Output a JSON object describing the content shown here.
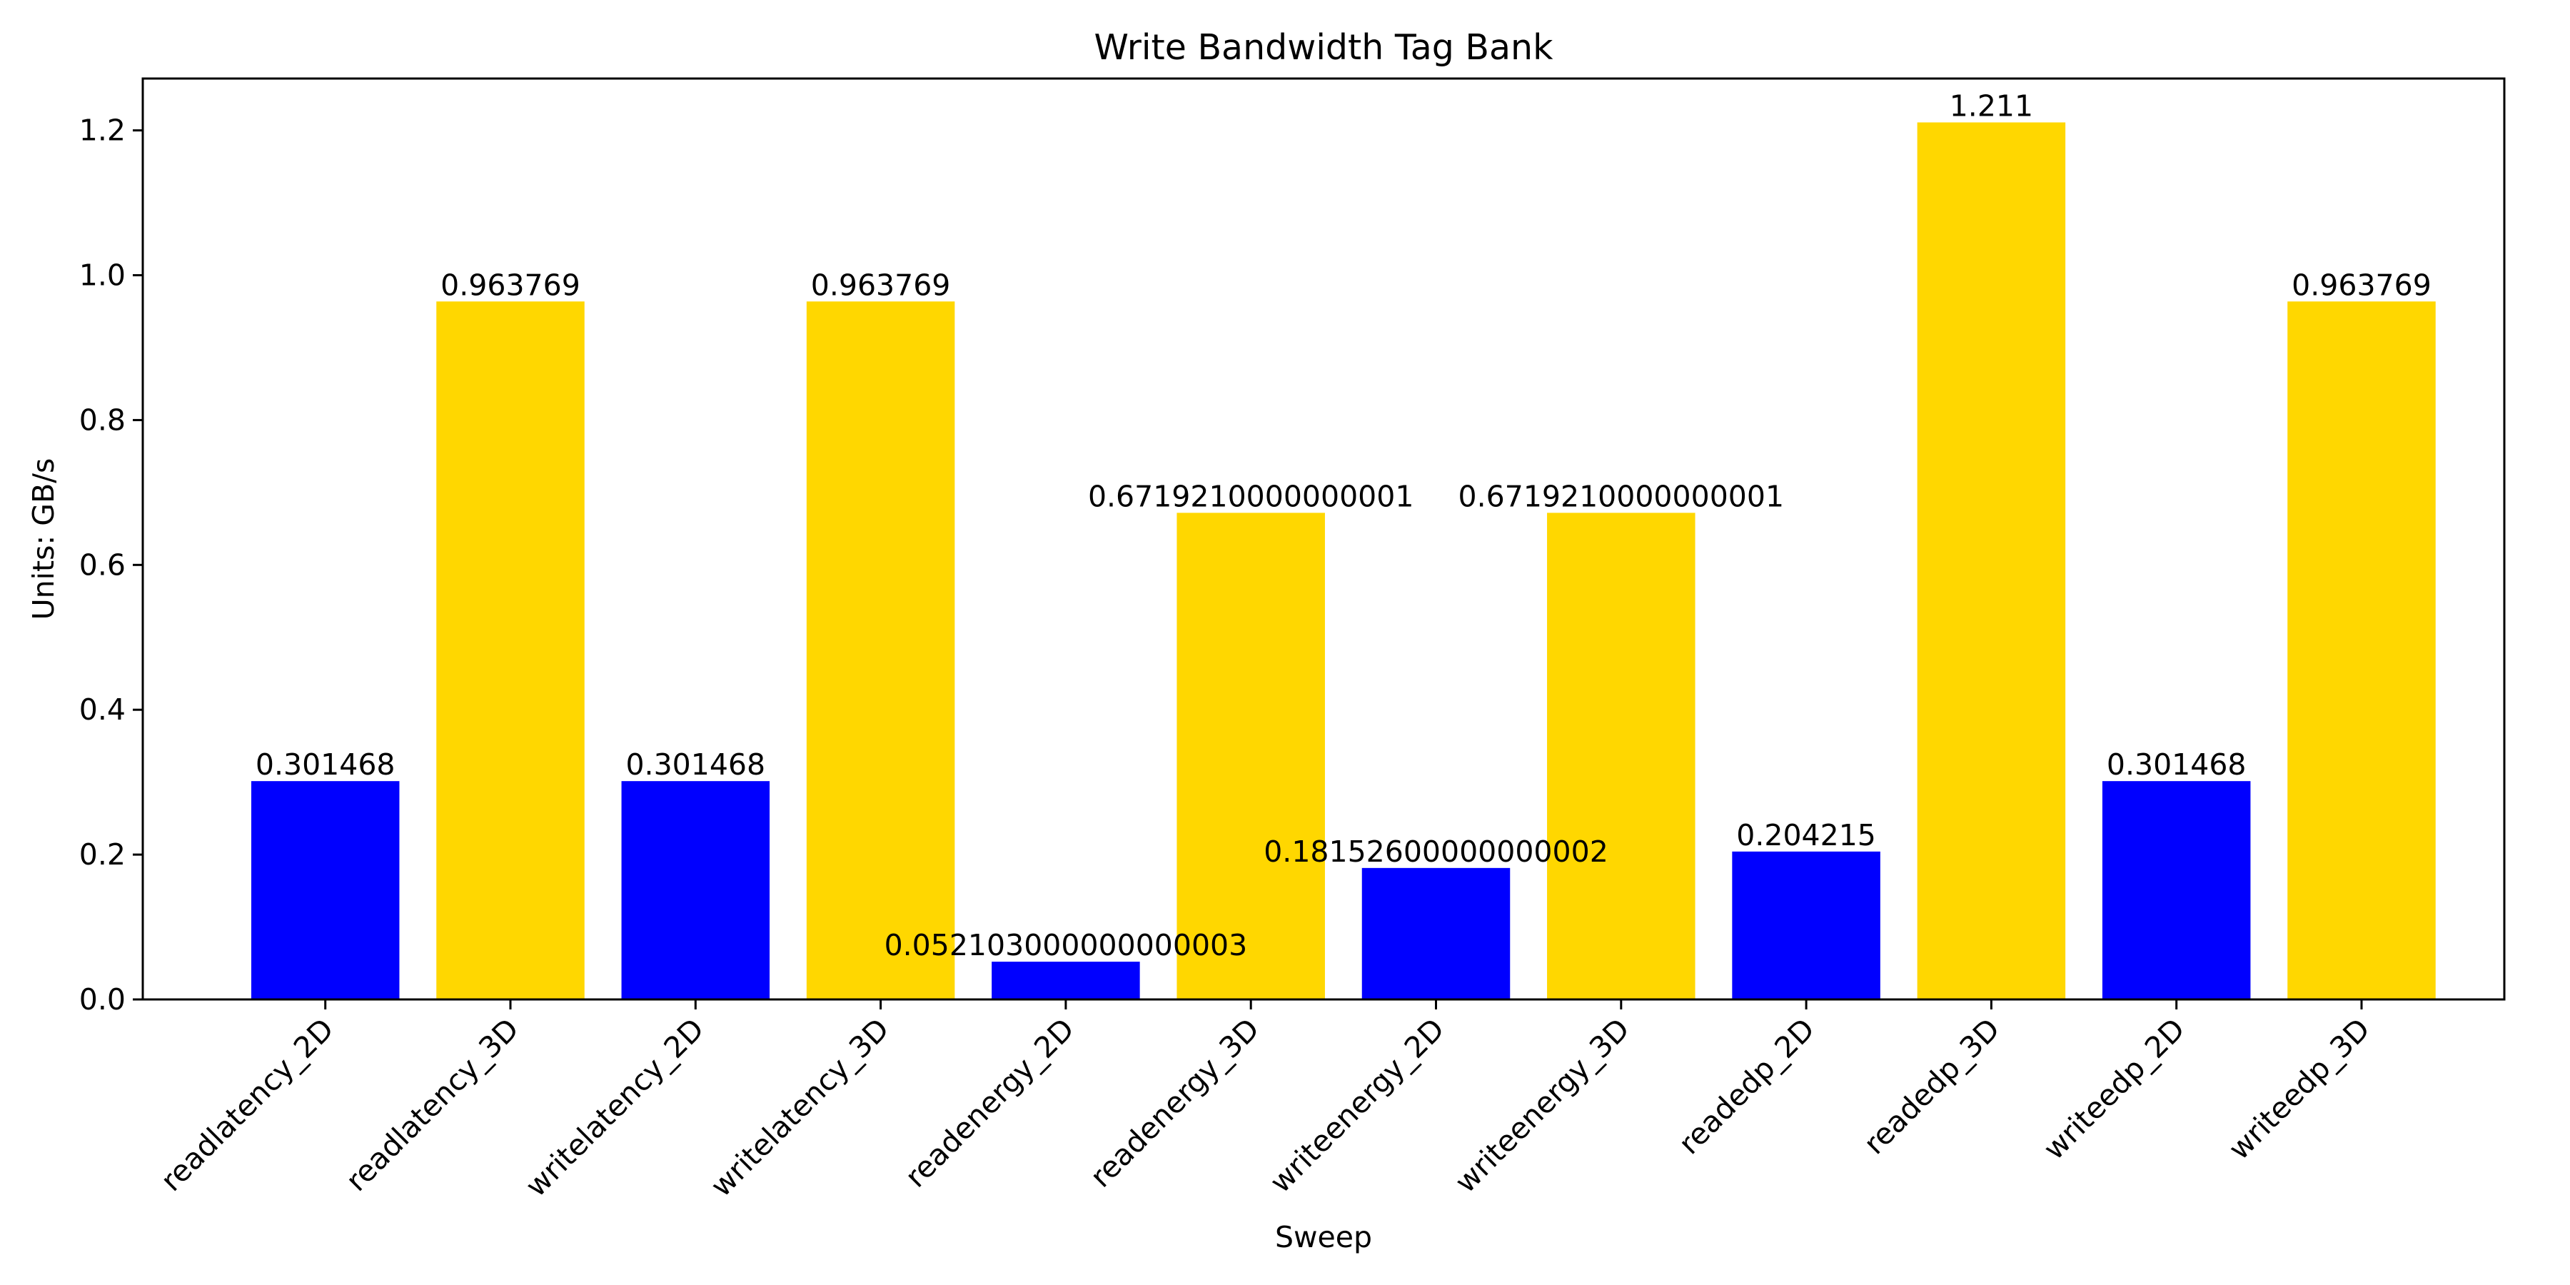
{
  "chart_data": {
    "type": "bar",
    "title": "Write Bandwidth Tag Bank",
    "xlabel": "Sweep",
    "ylabel": "Units: GB/s",
    "ylim": [
      0,
      1.2716
    ],
    "yticks": [
      0.0,
      0.2,
      0.4,
      0.6,
      0.8,
      1.0,
      1.2
    ],
    "ytick_labels": [
      "0.0",
      "0.2",
      "0.4",
      "0.6",
      "0.8",
      "1.0",
      "1.2"
    ],
    "grid": false,
    "categories": [
      "readlatency_2D",
      "readlatency_3D",
      "writelatency_2D",
      "writelatency_3D",
      "readenergy_2D",
      "readenergy_3D",
      "writeenergy_2D",
      "writeenergy_3D",
      "readedp_2D",
      "readedp_3D",
      "writeedp_2D",
      "writeedp_3D"
    ],
    "values": [
      0.301468,
      0.963769,
      0.301468,
      0.963769,
      0.052103,
      0.671921,
      0.181526,
      0.671921,
      0.204215,
      1.211,
      0.301468,
      0.963769
    ],
    "value_labels": [
      "0.301468",
      "0.963769",
      "0.301468",
      "0.963769",
      "0.052103000000000003",
      "0.6719210000000001",
      "0.18152600000000002",
      "0.6719210000000001",
      "0.204215",
      "1.211",
      "0.301468",
      "0.963769"
    ],
    "colors": [
      "#0000ff",
      "#ffd700",
      "#0000ff",
      "#ffd700",
      "#0000ff",
      "#ffd700",
      "#0000ff",
      "#ffd700",
      "#0000ff",
      "#ffd700",
      "#0000ff",
      "#ffd700"
    ]
  }
}
